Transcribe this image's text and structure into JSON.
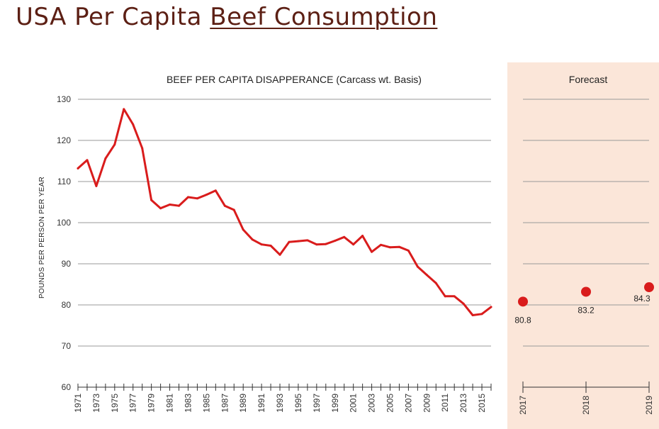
{
  "page": {
    "title_plain": "USA Per Capita ",
    "title_underlined": "Beef Consumption"
  },
  "colors": {
    "title": "#5c1f14",
    "series": "#d91c1c",
    "forecast_panel": "#fbe6d9",
    "grid": "#999999"
  },
  "chart_data": [
    {
      "type": "line",
      "title": "BEEF PER CAPITA DISAPPERANCE (Carcass wt. Basis)",
      "ylabel": "POUNDS PER PERSON PER YEAR",
      "xlabel": "",
      "ylim": [
        60,
        130
      ],
      "yticks": [
        60,
        70,
        80,
        90,
        100,
        110,
        120,
        130
      ],
      "grid": true,
      "x": [
        1971,
        1972,
        1973,
        1974,
        1975,
        1976,
        1977,
        1978,
        1979,
        1980,
        1981,
        1982,
        1983,
        1984,
        1985,
        1986,
        1987,
        1988,
        1989,
        1990,
        1991,
        1992,
        1993,
        1994,
        1995,
        1996,
        1997,
        1998,
        1999,
        2000,
        2001,
        2002,
        2003,
        2004,
        2005,
        2006,
        2007,
        2008,
        2009,
        2010,
        2011,
        2012,
        2013,
        2014,
        2015,
        2016
      ],
      "x_tick_labels": [
        "1971",
        "1973",
        "1975",
        "1977",
        "1979",
        "1981",
        "1983",
        "1985",
        "1987",
        "1989",
        "1991",
        "1993",
        "1995",
        "1997",
        "1999",
        "2001",
        "2003",
        "2005",
        "2007",
        "2009",
        "2011",
        "2013",
        "2015"
      ],
      "series": [
        {
          "values": [
            113.2,
            115.2,
            108.9,
            115.6,
            119.0,
            127.6,
            123.9,
            118.1,
            105.5,
            103.5,
            104.4,
            104.1,
            106.2,
            105.9,
            106.8,
            107.8,
            104.1,
            103.1,
            98.3,
            95.9,
            94.7,
            94.4,
            92.2,
            95.3,
            95.5,
            95.7,
            94.7,
            94.8,
            95.6,
            96.5,
            94.7,
            96.8,
            92.9,
            94.6,
            94.0,
            94.1,
            93.2,
            89.3,
            87.3,
            85.3,
            82.1,
            82.1,
            80.3,
            77.5,
            77.8,
            79.5
          ]
        }
      ]
    },
    {
      "type": "scatter",
      "title": "Forecast",
      "ylim": [
        60,
        130
      ],
      "grid": true,
      "categories": [
        "2017",
        "2018",
        "2019"
      ],
      "series": [
        {
          "values": [
            80.8,
            83.2,
            84.3
          ],
          "labels": [
            "80.8",
            "83.2",
            "84.3"
          ]
        }
      ]
    }
  ]
}
